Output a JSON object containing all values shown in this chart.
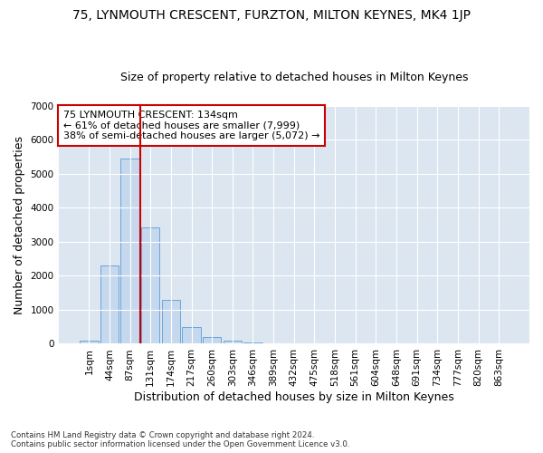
{
  "title_line1": "75, LYNMOUTH CRESCENT, FURZTON, MILTON KEYNES, MK4 1JP",
  "title_line2": "Size of property relative to detached houses in Milton Keynes",
  "xlabel": "Distribution of detached houses by size in Milton Keynes",
  "ylabel": "Number of detached properties",
  "footnote": "Contains HM Land Registry data © Crown copyright and database right 2024.\nContains public sector information licensed under the Open Government Licence v3.0.",
  "bar_labels": [
    "1sqm",
    "44sqm",
    "87sqm",
    "131sqm",
    "174sqm",
    "217sqm",
    "260sqm",
    "303sqm",
    "346sqm",
    "389sqm",
    "432sqm",
    "475sqm",
    "518sqm",
    "561sqm",
    "604sqm",
    "648sqm",
    "691sqm",
    "734sqm",
    "777sqm",
    "820sqm",
    "863sqm"
  ],
  "bar_values": [
    100,
    2300,
    5450,
    3420,
    1300,
    480,
    190,
    95,
    50,
    0,
    0,
    0,
    0,
    0,
    0,
    0,
    0,
    0,
    0,
    0,
    0
  ],
  "bar_color": "#c5d8ed",
  "bar_edge_color": "#5b9bd5",
  "vline_color": "#cc0000",
  "annotation_text": "75 LYNMOUTH CRESCENT: 134sqm\n← 61% of detached houses are smaller (7,999)\n38% of semi-detached houses are larger (5,072) →",
  "annotation_box_color": "#ffffff",
  "annotation_box_edge": "#cc0000",
  "ylim": [
    0,
    7000
  ],
  "yticks": [
    0,
    1000,
    2000,
    3000,
    4000,
    5000,
    6000,
    7000
  ],
  "plot_bg_color": "#dce6f1",
  "title1_fontsize": 10,
  "title2_fontsize": 9,
  "axis_label_fontsize": 9,
  "tick_fontsize": 7.5
}
